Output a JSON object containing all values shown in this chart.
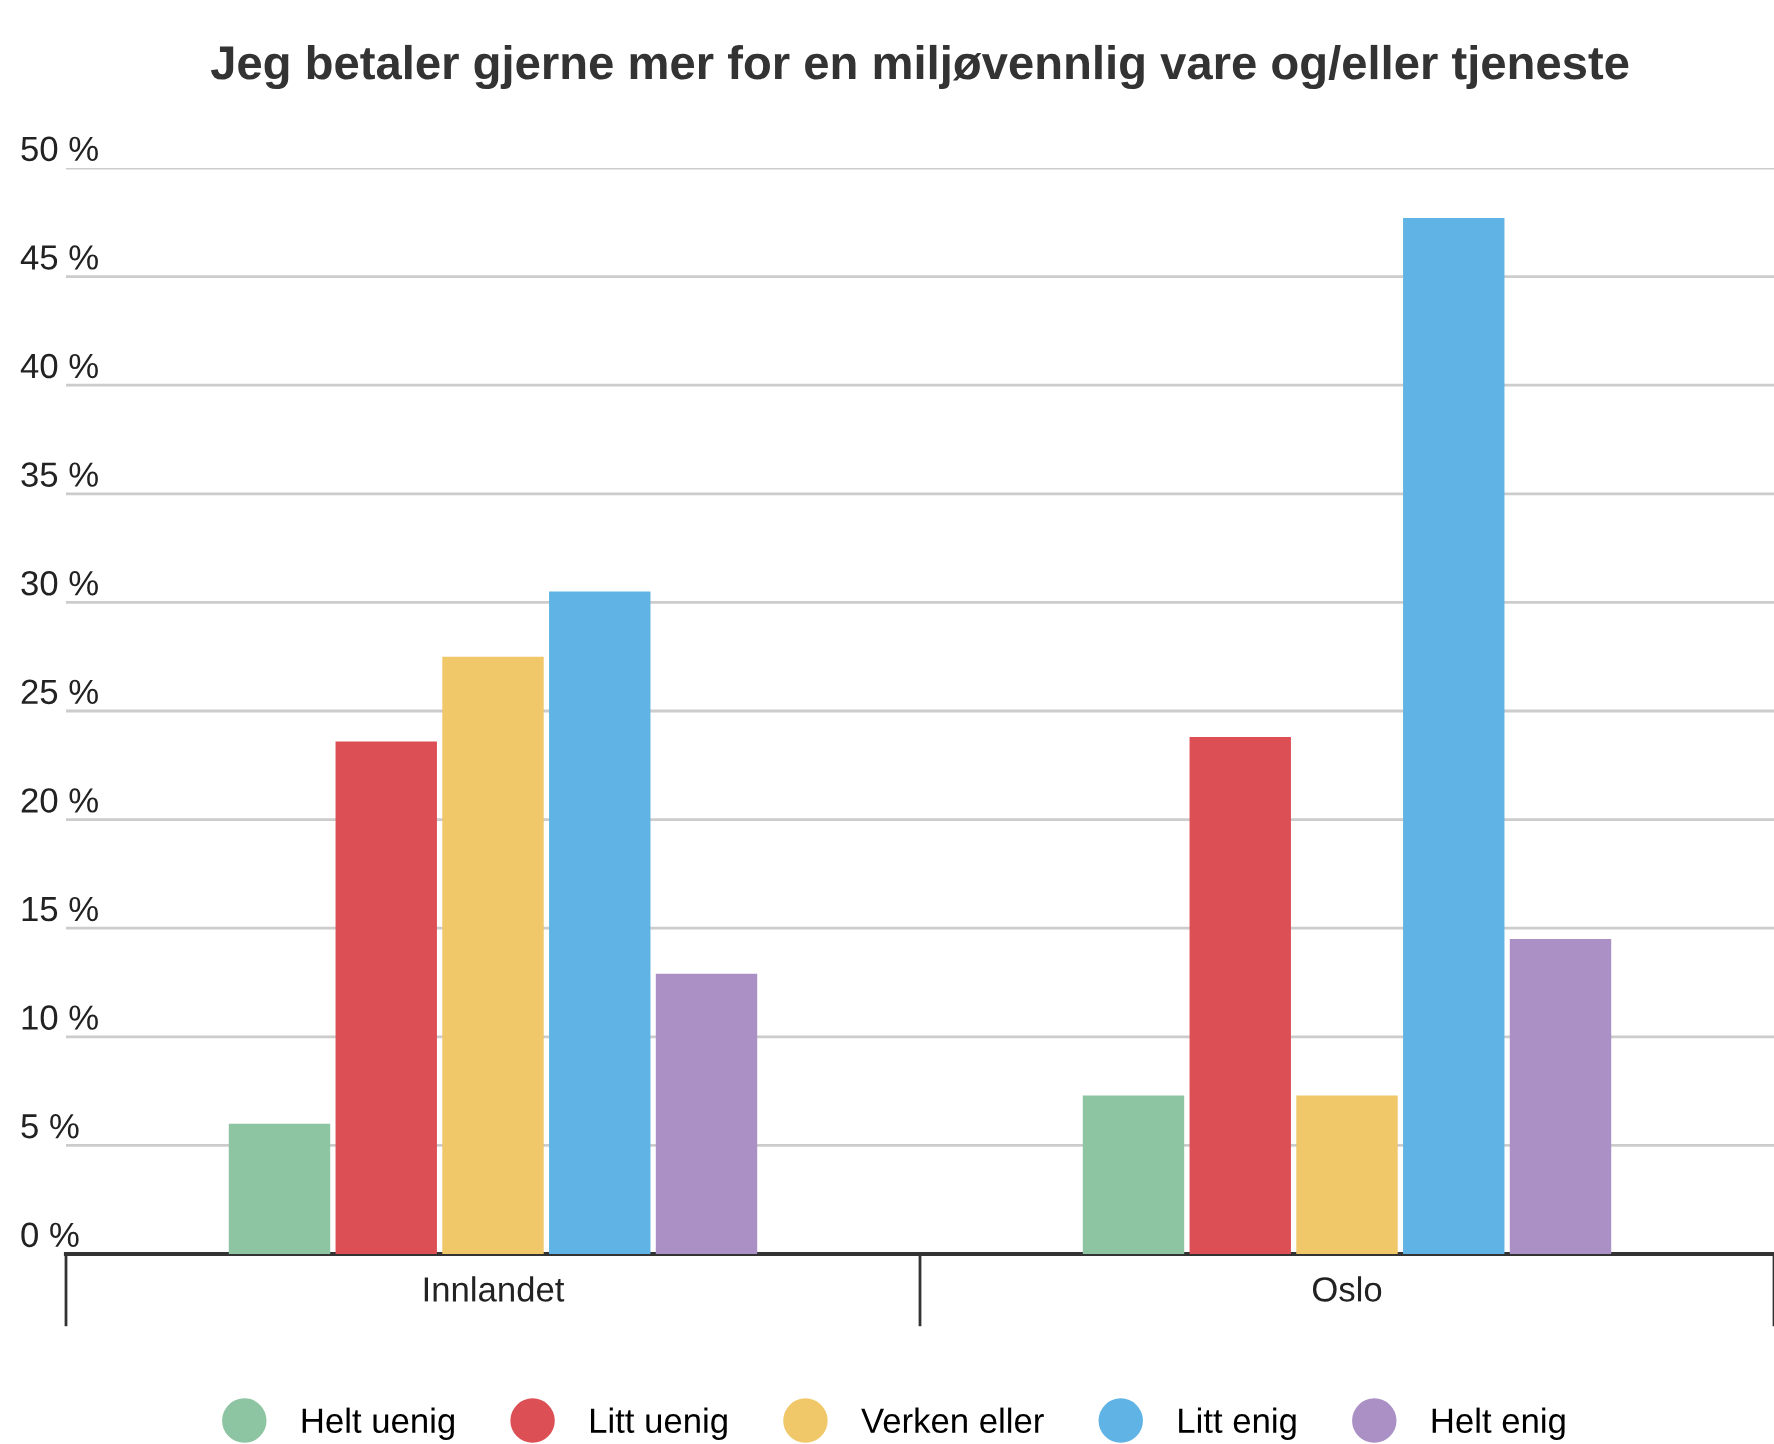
{
  "chart_data": {
    "type": "bar",
    "title": "Jeg betaler gjerne mer for en miljøvennlig vare og/eller tjeneste",
    "categories": [
      "Innlandet",
      "Oslo"
    ],
    "series": [
      {
        "name": "Helt uenig",
        "color": "#8dc4a2",
        "values": [
          6.0,
          7.3
        ]
      },
      {
        "name": "Litt uenig",
        "color": "#dc5055",
        "values": [
          23.6,
          23.8
        ]
      },
      {
        "name": "Verken eller",
        "color": "#f0c769",
        "values": [
          27.5,
          7.3
        ]
      },
      {
        "name": "Litt enig",
        "color": "#60b3e5",
        "values": [
          30.5,
          47.7
        ]
      },
      {
        "name": "Helt enig",
        "color": "#aa90c4",
        "values": [
          12.9,
          14.5
        ]
      }
    ],
    "ylim": [
      0,
      50
    ],
    "yticks": [
      {
        "value": 0,
        "label": "0 %"
      },
      {
        "value": 5,
        "label": "5 %"
      },
      {
        "value": 10,
        "label": "10 %"
      },
      {
        "value": 15,
        "label": "15 %"
      },
      {
        "value": 20,
        "label": "20 %"
      },
      {
        "value": 25,
        "label": "25 %"
      },
      {
        "value": 30,
        "label": "30 %"
      },
      {
        "value": 35,
        "label": "35 %"
      },
      {
        "value": 40,
        "label": "40 %"
      },
      {
        "value": 45,
        "label": "45 %"
      },
      {
        "value": 50,
        "label": "50 %"
      }
    ],
    "grid": "y",
    "legend": "bottom",
    "marker": "circle"
  }
}
